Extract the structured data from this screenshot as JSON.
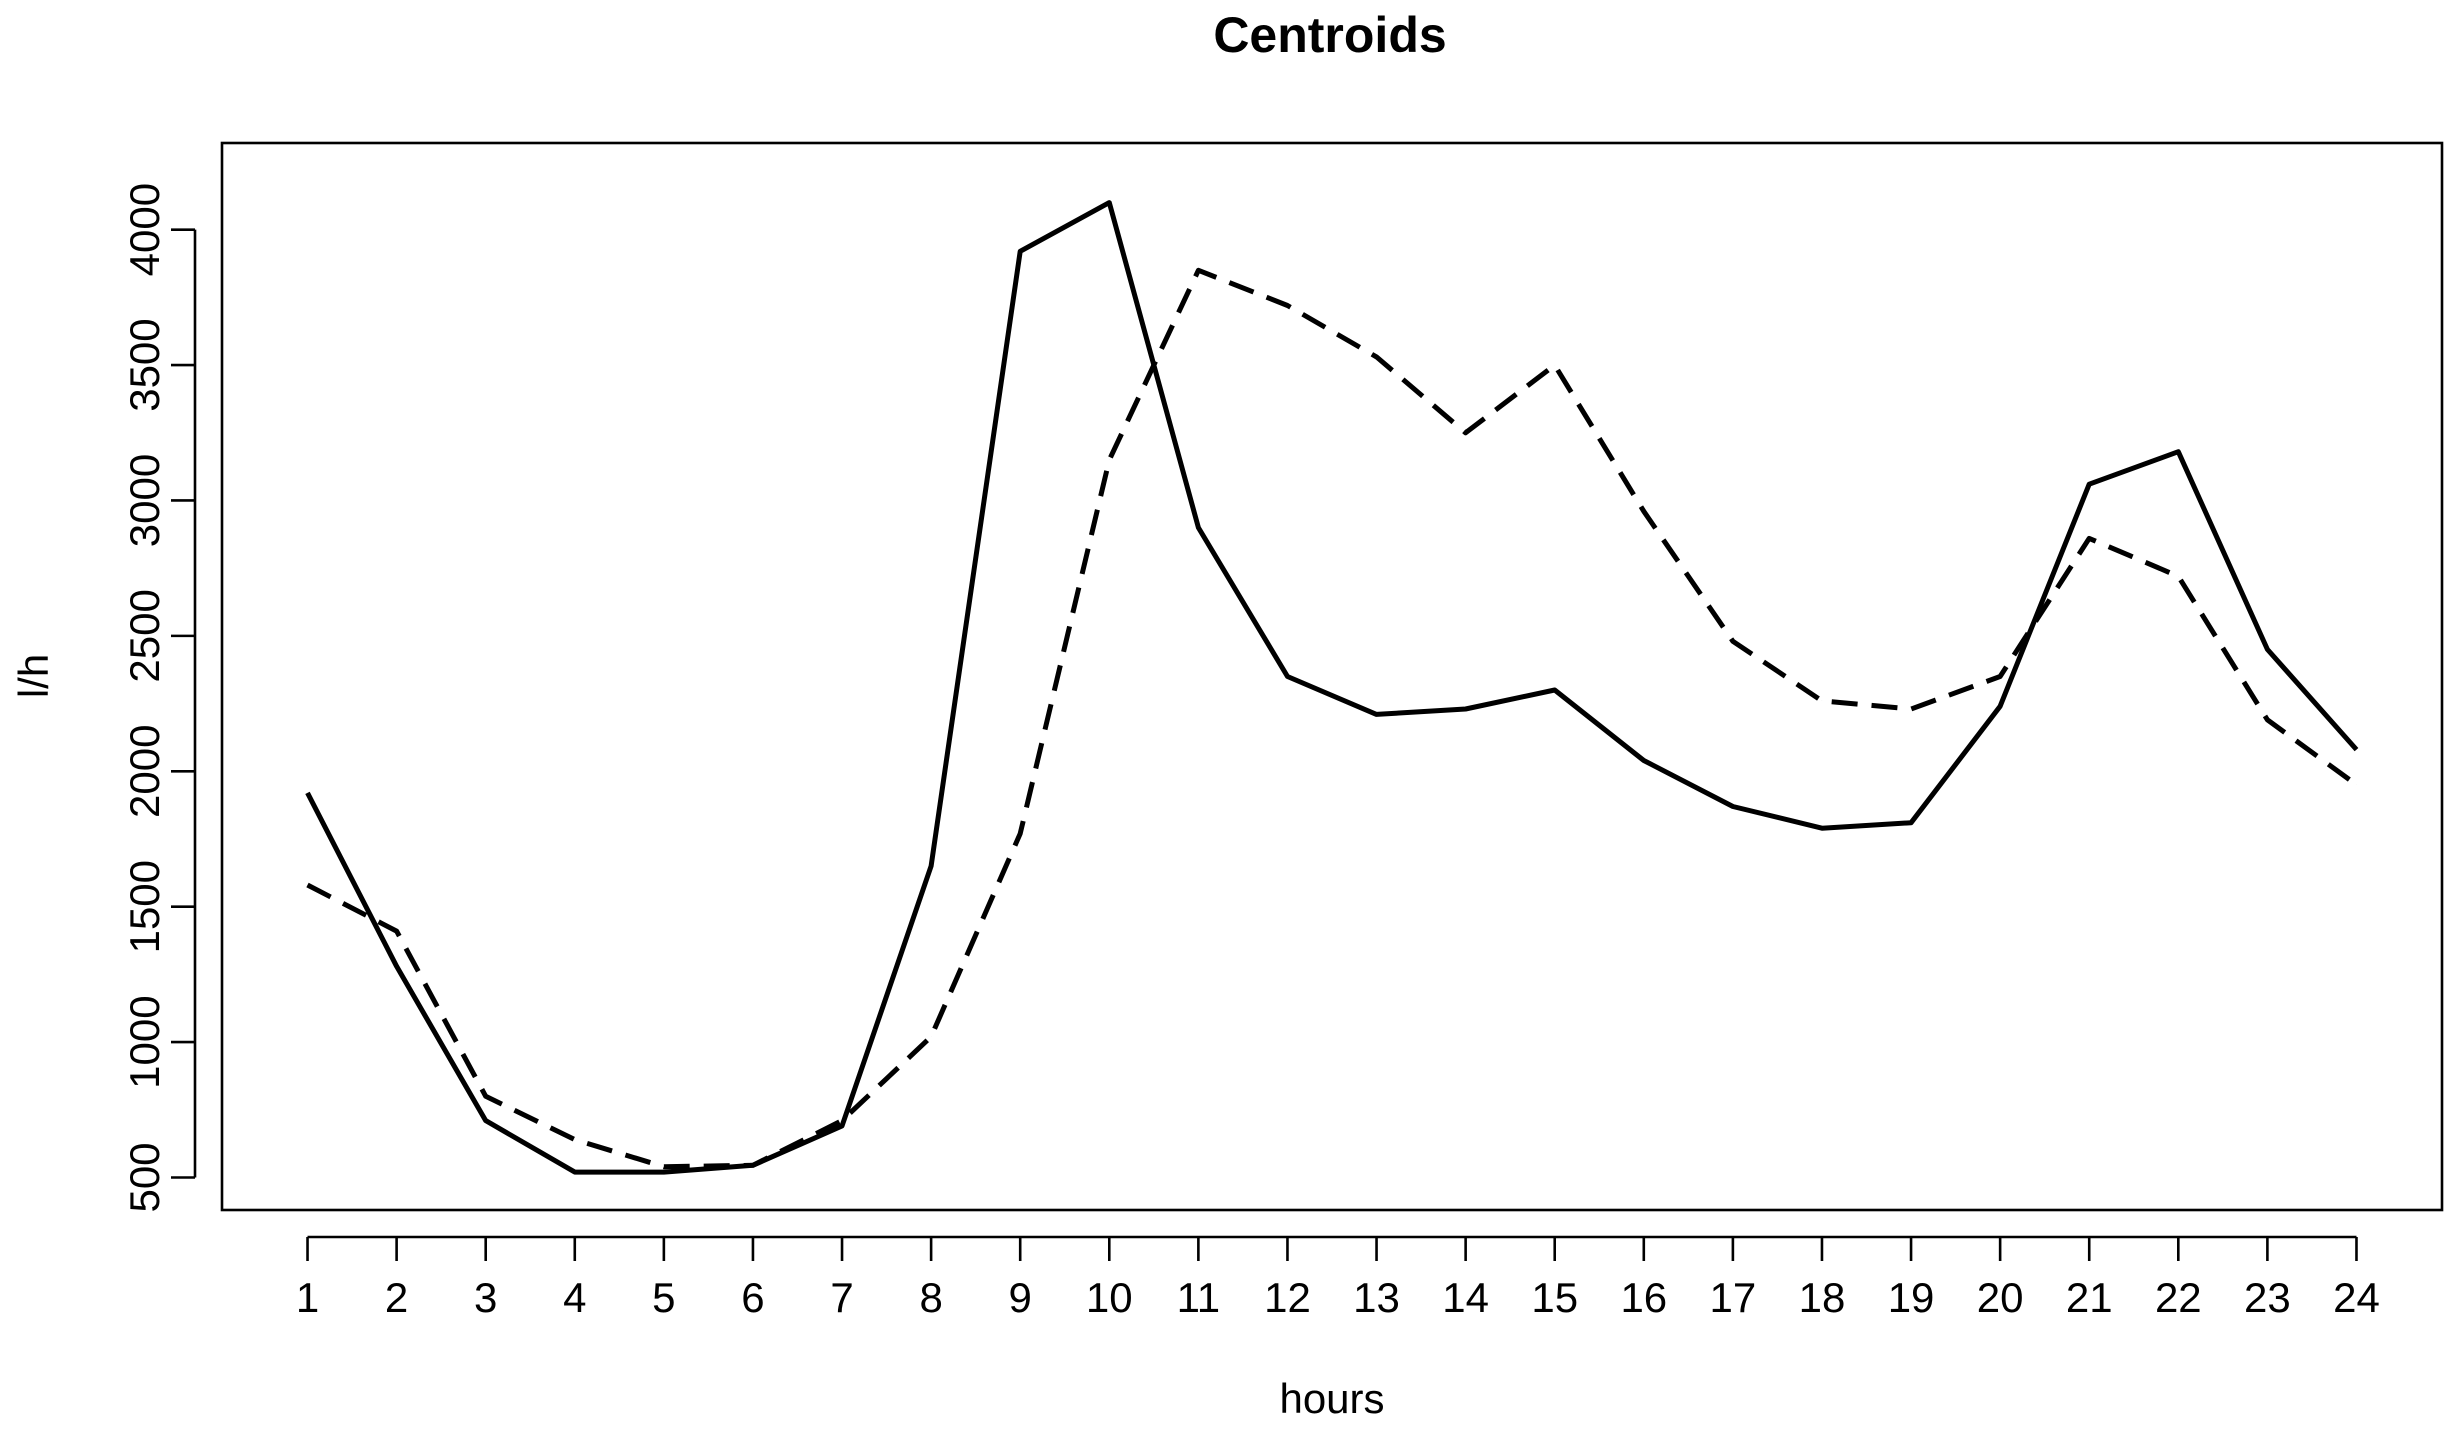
{
  "chart_data": {
    "type": "line",
    "title": "Centroids",
    "xlabel": "hours",
    "ylabel": "l/h",
    "x": [
      1,
      2,
      3,
      4,
      5,
      6,
      7,
      8,
      9,
      10,
      11,
      12,
      13,
      14,
      15,
      16,
      17,
      18,
      19,
      20,
      21,
      22,
      23,
      24
    ],
    "x_tick_labels": [
      "1",
      "2",
      "3",
      "4",
      "5",
      "6",
      "7",
      "8",
      "9",
      "10",
      "11",
      "12",
      "13",
      "14",
      "15",
      "16",
      "17",
      "18",
      "19",
      "20",
      "21",
      "22",
      "23",
      "24"
    ],
    "y_ticks": [
      500,
      1000,
      1500,
      2000,
      2500,
      3000,
      3500,
      4000
    ],
    "y_tick_labels": [
      "500",
      "1000",
      "1500",
      "2000",
      "2500",
      "3000",
      "3500",
      "4000"
    ],
    "xlim": [
      0.04,
      24.96
    ],
    "ylim": [
      380,
      4320
    ],
    "grid": false,
    "legend": "none",
    "series": [
      {
        "style": "solid",
        "color": "#000000",
        "values": [
          1920,
          1280,
          710,
          520,
          520,
          545,
          690,
          1650,
          3920,
          4100,
          2900,
          2350,
          2210,
          2230,
          2300,
          2040,
          1870,
          1790,
          1810,
          2240,
          3060,
          3180,
          2450,
          2080
        ]
      },
      {
        "style": "dashed",
        "color": "#000000",
        "values": [
          1580,
          1410,
          800,
          640,
          540,
          545,
          710,
          1020,
          1770,
          3150,
          3850,
          3720,
          3530,
          3250,
          3500,
          2960,
          2480,
          2260,
          2230,
          2350,
          2860,
          2720,
          2190,
          1950
        ]
      }
    ]
  }
}
